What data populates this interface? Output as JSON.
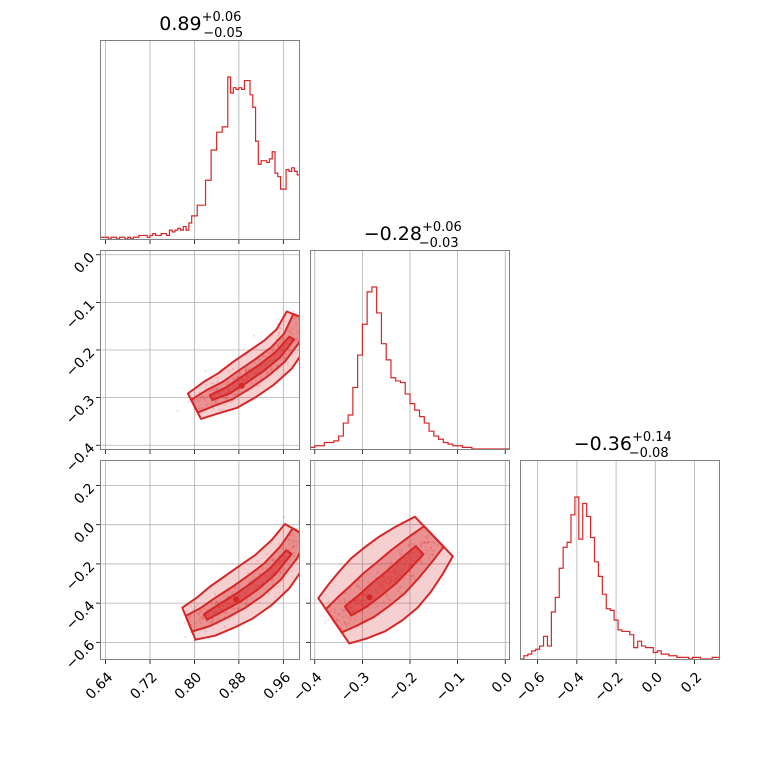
{
  "chart_data": {
    "type": "corner",
    "color": "#d62728",
    "grid": true,
    "parameters": [
      {
        "title": {
          "median": "0.89",
          "plus": "+0.06",
          "minus": "−0.05"
        },
        "range": [
          0.63,
          0.99
        ],
        "ticks": [
          0.64,
          0.72,
          0.8,
          0.88,
          0.96
        ],
        "tick_labels": [
          "0.64",
          "0.72",
          "0.80",
          "0.88",
          "0.96"
        ]
      },
      {
        "title": {
          "median": "−0.28",
          "plus": "+0.06",
          "minus": "−0.03"
        },
        "range": [
          -0.41,
          0.01
        ],
        "ticks": [
          -0.4,
          -0.3,
          -0.2,
          -0.1,
          0.0
        ],
        "tick_labels": [
          "−0.4",
          "−0.3",
          "−0.2",
          "−0.1",
          "0.0"
        ]
      },
      {
        "title": {
          "median": "−0.36",
          "plus": "+0.14",
          "minus": "−0.08"
        },
        "range": [
          -0.69,
          0.33
        ],
        "ticks": [
          -0.6,
          -0.4,
          -0.2,
          0.0,
          0.2
        ],
        "tick_labels": [
          "−0.6",
          "−0.4",
          "−0.2",
          "0.0",
          "0.2"
        ]
      }
    ],
    "histograms": [
      {
        "parameter": 0,
        "step_x": [
          0.63,
          0.635,
          0.64,
          0.645,
          0.65,
          0.655,
          0.66,
          0.665,
          0.67,
          0.675,
          0.68,
          0.685,
          0.69,
          0.695,
          0.7,
          0.705,
          0.71,
          0.715,
          0.72,
          0.725,
          0.73,
          0.735,
          0.74,
          0.745,
          0.75,
          0.755,
          0.76,
          0.765,
          0.77,
          0.775,
          0.78,
          0.785,
          0.79,
          0.795,
          0.8,
          0.805,
          0.81,
          0.815,
          0.82,
          0.825,
          0.83,
          0.835,
          0.84,
          0.845,
          0.85,
          0.855,
          0.86,
          0.865,
          0.87,
          0.875,
          0.88,
          0.885,
          0.89,
          0.895,
          0.9,
          0.905,
          0.91,
          0.915,
          0.92,
          0.925,
          0.93,
          0.935,
          0.94,
          0.945,
          0.95,
          0.955,
          0.96,
          0.965,
          0.97,
          0.975,
          0.98,
          0.985,
          0.99
        ],
        "counts": [
          0.01,
          0.01,
          0.01,
          0.0,
          0.01,
          0.01,
          0.0,
          0.01,
          0.01,
          0.0,
          0.01,
          0.0,
          0.01,
          0.01,
          0.02,
          0.02,
          0.02,
          0.01,
          0.02,
          0.03,
          0.02,
          0.02,
          0.03,
          0.03,
          0.02,
          0.05,
          0.04,
          0.05,
          0.06,
          0.05,
          0.07,
          0.05,
          0.09,
          0.13,
          0.13,
          0.19,
          0.19,
          0.19,
          0.33,
          0.33,
          0.5,
          0.5,
          0.6,
          0.6,
          0.63,
          0.63,
          0.91,
          0.82,
          0.85,
          0.84,
          0.85,
          0.84,
          0.89,
          0.89,
          0.81,
          0.74,
          0.55,
          0.42,
          0.44,
          0.44,
          0.43,
          0.45,
          0.49,
          0.37,
          0.35,
          0.28,
          0.28,
          0.39,
          0.38,
          0.4,
          0.38,
          0.36
        ]
      },
      {
        "parameter": 1,
        "step_x": [
          -0.41,
          -0.4,
          -0.39,
          -0.38,
          -0.37,
          -0.36,
          -0.35,
          -0.34,
          -0.33,
          -0.32,
          -0.31,
          -0.3,
          -0.29,
          -0.28,
          -0.27,
          -0.26,
          -0.25,
          -0.24,
          -0.23,
          -0.22,
          -0.21,
          -0.2,
          -0.19,
          -0.18,
          -0.17,
          -0.16,
          -0.15,
          -0.14,
          -0.13,
          -0.12,
          -0.11,
          -0.1,
          -0.09,
          -0.08,
          -0.07,
          -0.06,
          -0.05,
          -0.04,
          -0.03,
          -0.02,
          -0.01,
          0.0,
          0.01
        ],
        "counts": [
          0.01,
          0.02,
          0.02,
          0.04,
          0.04,
          0.05,
          0.08,
          0.16,
          0.21,
          0.38,
          0.58,
          0.77,
          0.97,
          1.0,
          0.84,
          0.65,
          0.55,
          0.44,
          0.42,
          0.41,
          0.34,
          0.28,
          0.24,
          0.2,
          0.16,
          0.11,
          0.08,
          0.06,
          0.04,
          0.03,
          0.02,
          0.02,
          0.01,
          0.01,
          0.0,
          0.0,
          0.0,
          0.0,
          0.0,
          0.0,
          0.0,
          0.0
        ]
      },
      {
        "parameter": 2,
        "step_x": [
          -0.69,
          -0.67,
          -0.65,
          -0.63,
          -0.61,
          -0.59,
          -0.57,
          -0.55,
          -0.53,
          -0.51,
          -0.49,
          -0.47,
          -0.45,
          -0.43,
          -0.41,
          -0.39,
          -0.37,
          -0.35,
          -0.33,
          -0.31,
          -0.29,
          -0.27,
          -0.25,
          -0.23,
          -0.21,
          -0.19,
          -0.17,
          -0.15,
          -0.13,
          -0.11,
          -0.09,
          -0.07,
          -0.05,
          -0.03,
          -0.01,
          0.01,
          0.03,
          0.05,
          0.07,
          0.09,
          0.11,
          0.13,
          0.15,
          0.17,
          0.19,
          0.21,
          0.23,
          0.25,
          0.27,
          0.29,
          0.31,
          0.33
        ],
        "counts": [
          0.0,
          0.02,
          0.03,
          0.05,
          0.06,
          0.08,
          0.14,
          0.08,
          0.29,
          0.38,
          0.56,
          0.69,
          0.72,
          0.89,
          1.0,
          0.74,
          0.96,
          0.88,
          0.75,
          0.6,
          0.51,
          0.4,
          0.31,
          0.3,
          0.24,
          0.18,
          0.17,
          0.17,
          0.15,
          0.07,
          0.11,
          0.08,
          0.07,
          0.07,
          0.04,
          0.05,
          0.03,
          0.03,
          0.02,
          0.02,
          0.01,
          0.01,
          0.01,
          0.0,
          0.01,
          0.01,
          0.0,
          0.0,
          0.0,
          0.01,
          0.01
        ]
      }
    ],
    "joint_panels": [
      {
        "x_parameter": 0,
        "y_parameter": 1,
        "mode": [
          0.885,
          -0.275
        ],
        "ridge": [
          [
            0.8,
            -0.318
          ],
          [
            0.83,
            -0.3
          ],
          [
            0.86,
            -0.285
          ],
          [
            0.89,
            -0.262
          ],
          [
            0.92,
            -0.238
          ],
          [
            0.95,
            -0.21
          ],
          [
            0.975,
            -0.175
          ],
          [
            0.99,
            -0.13
          ]
        ],
        "contour_widths": [
          0.038,
          0.024,
          0.013
        ]
      },
      {
        "x_parameter": 0,
        "y_parameter": 2,
        "mode": [
          0.875,
          -0.38
        ],
        "ridge": [
          [
            0.79,
            -0.505
          ],
          [
            0.82,
            -0.47
          ],
          [
            0.85,
            -0.42
          ],
          [
            0.88,
            -0.37
          ],
          [
            0.91,
            -0.31
          ],
          [
            0.94,
            -0.24
          ],
          [
            0.97,
            -0.14
          ],
          [
            0.99,
            -0.04
          ]
        ],
        "contour_widths": [
          0.046,
          0.028,
          0.015
        ]
      },
      {
        "x_parameter": 1,
        "y_parameter": 2,
        "mode": [
          -0.285,
          -0.37
        ],
        "ridge": [
          [
            -0.36,
            -0.49
          ],
          [
            -0.33,
            -0.44
          ],
          [
            -0.3,
            -0.39
          ],
          [
            -0.27,
            -0.33
          ],
          [
            -0.24,
            -0.27
          ],
          [
            -0.21,
            -0.2
          ],
          [
            -0.18,
            -0.13
          ],
          [
            -0.15,
            -0.06
          ]
        ],
        "contour_widths": [
          0.085,
          0.055,
          0.03
        ]
      }
    ]
  }
}
